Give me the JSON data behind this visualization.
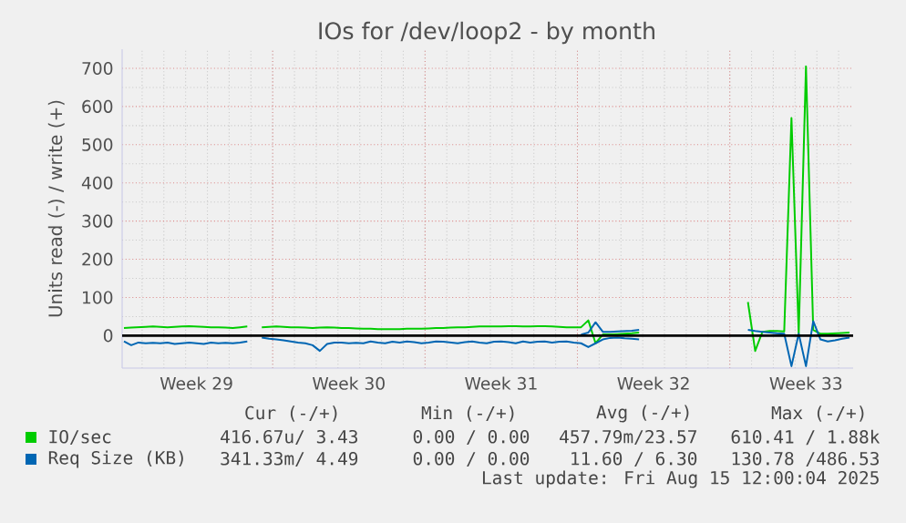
{
  "chart_data": {
    "type": "line",
    "title": "IOs for /dev/loop2 - by month",
    "ylabel": "Units read (-) / write (+)",
    "categories": [
      null,
      null,
      null,
      null,
      null,
      null,
      null,
      null,
      null,
      null,
      "Week 29",
      null,
      null,
      null,
      null,
      null,
      null,
      null,
      null,
      null,
      null,
      null,
      null,
      null,
      null,
      null,
      null,
      null,
      null,
      null,
      null,
      "Week 30",
      null,
      null,
      null,
      null,
      null,
      null,
      null,
      null,
      null,
      null,
      null,
      null,
      null,
      null,
      null,
      null,
      null,
      null,
      null,
      null,
      "Week 31",
      null,
      null,
      null,
      null,
      null,
      null,
      null,
      null,
      null,
      null,
      null,
      null,
      null,
      null,
      null,
      null,
      null,
      null,
      null,
      null,
      "Week 32",
      null,
      null,
      null,
      null,
      null,
      null,
      null,
      null,
      null,
      null,
      null,
      null,
      null,
      null,
      null,
      null,
      null,
      null,
      null,
      null,
      "Week 33",
      null,
      null,
      null,
      null,
      null,
      null
    ],
    "ylim": [
      -85,
      750
    ],
    "yticks": [
      0,
      100,
      200,
      300,
      400,
      500,
      600,
      700
    ],
    "grid": true,
    "legend": "bottom",
    "marker": "none",
    "line_style": "solid",
    "ref_lines": [
      {
        "axis": "y",
        "value": 0,
        "color": "#000000"
      }
    ],
    "series": [
      {
        "name": "IO/sec",
        "color": "#00cc00",
        "values": [
          20,
          21,
          22,
          23,
          24,
          23,
          22,
          23,
          24,
          25,
          24,
          23,
          22,
          22,
          21,
          20,
          22,
          24,
          null,
          22,
          23,
          24,
          23,
          22,
          22,
          21,
          20,
          21,
          22,
          21,
          20,
          20,
          19,
          18,
          18,
          17,
          17,
          17,
          17,
          18,
          18,
          18,
          19,
          20,
          20,
          21,
          22,
          22,
          23,
          24,
          24,
          24,
          24,
          25,
          25,
          24,
          24,
          25,
          25,
          24,
          23,
          22,
          22,
          22,
          40,
          -20,
          3,
          3,
          4,
          5,
          6,
          8,
          null,
          null,
          null,
          null,
          null,
          null,
          null,
          null,
          null,
          null,
          null,
          null,
          null,
          null,
          88,
          -40,
          10,
          12,
          12,
          11,
          570,
          5,
          705,
          15,
          5,
          5,
          6,
          7,
          8
        ]
      },
      {
        "name": "Req Size (KB)",
        "color": "#0066b3",
        "values": [
          null,
          null,
          null,
          null,
          null,
          null,
          null,
          null,
          null,
          null,
          null,
          null,
          null,
          null,
          null,
          null,
          null,
          null,
          null,
          null,
          null,
          null,
          null,
          null,
          null,
          null,
          null,
          null,
          null,
          null,
          null,
          null,
          null,
          null,
          null,
          null,
          null,
          null,
          null,
          null,
          null,
          null,
          null,
          null,
          null,
          null,
          null,
          null,
          null,
          null,
          null,
          null,
          null,
          null,
          null,
          null,
          null,
          null,
          null,
          null,
          null,
          null,
          null,
          3,
          8,
          35,
          10,
          10,
          11,
          12,
          13,
          15,
          null,
          null,
          null,
          null,
          null,
          null,
          null,
          null,
          null,
          null,
          null,
          null,
          null,
          null,
          null,
          null,
          null,
          null,
          null,
          null,
          null,
          null,
          null,
          null,
          null,
          null,
          null,
          null,
          null
        ]
      },
      {
        "color": "#0066b3",
        "values": [
          -15,
          -25,
          -18,
          -20,
          -19,
          -20,
          -18,
          -22,
          -20,
          -18,
          -20,
          -22,
          -18,
          -20,
          -19,
          -20,
          -18,
          -15,
          null,
          -5,
          -8,
          -10,
          -12,
          -15,
          -18,
          -20,
          -25,
          -40,
          -22,
          -18,
          -18,
          -20,
          -19,
          -20,
          -15,
          -18,
          -20,
          -16,
          -18,
          -15,
          -17,
          -20,
          -18,
          -15,
          -16,
          -18,
          -20,
          -17,
          -15,
          -18,
          -20,
          -16,
          -15,
          -17,
          -20,
          -15,
          -18,
          -16,
          -15,
          -18,
          -16,
          -15,
          -18,
          -20,
          -30,
          -20,
          -10,
          -6,
          -5,
          -7,
          -8,
          -10,
          null,
          null,
          null,
          null,
          null,
          null,
          null,
          null,
          null,
          null,
          null,
          null,
          null,
          null,
          15,
          12,
          10,
          8,
          6,
          5,
          -80,
          5,
          -80,
          38,
          -10,
          -15,
          -12,
          -8,
          -5
        ]
      }
    ],
    "annotations": [
      "Cur (-/+)",
      "Min (-/+)",
      "Avg (-/+)",
      "Max (-/+)",
      "416.67u/ 3.43",
      "0.00 / 0.00",
      "457.79m/23.57",
      "610.41 / 1.88k",
      "341.33m/ 4.49",
      "0.00 / 0.00",
      "11.60 / 6.30",
      "130.78 /486.53",
      "Last update: Fri Aug 15 12:00:04 2025"
    ]
  }
}
